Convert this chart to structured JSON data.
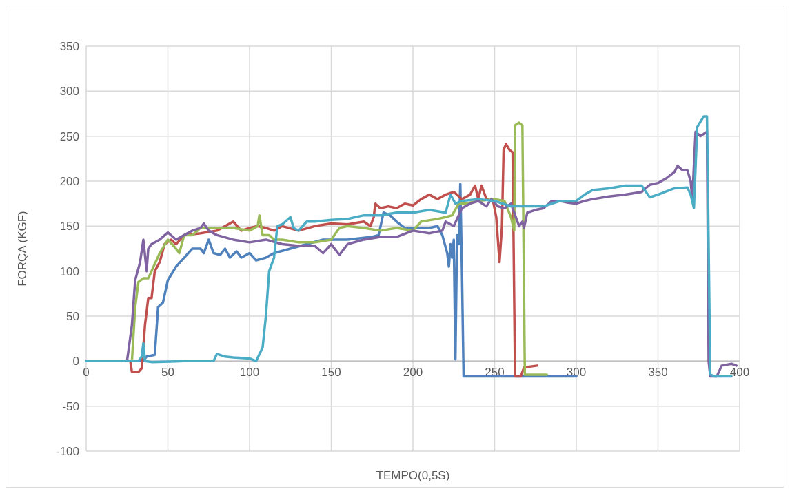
{
  "chart_data": {
    "type": "line",
    "xlabel": "TEMPO(0,5S)",
    "ylabel": "FORÇA (KGF)",
    "xlim": [
      0,
      400
    ],
    "ylim": [
      -100,
      350
    ],
    "xticks": [
      0,
      50,
      100,
      150,
      200,
      250,
      300,
      350,
      400
    ],
    "yticks": [
      -100,
      -50,
      0,
      50,
      100,
      150,
      200,
      250,
      300,
      350
    ],
    "grid": true,
    "marker": "none",
    "line_style": "solid",
    "series": [
      {
        "color": "#4f81bd",
        "x": [
          0,
          35,
          37,
          42,
          44,
          47,
          50,
          55,
          60,
          65,
          70,
          72,
          75,
          78,
          82,
          85,
          88,
          92,
          95,
          100,
          104,
          110,
          115,
          125,
          135,
          145,
          160,
          170,
          175,
          179,
          182,
          186,
          190,
          195,
          200,
          210,
          215,
          218,
          221,
          222,
          223,
          224,
          225,
          226,
          227,
          228,
          229,
          230,
          231,
          300
        ],
        "values": [
          0,
          0,
          5,
          7,
          60,
          65,
          90,
          105,
          115,
          125,
          125,
          120,
          135,
          120,
          118,
          125,
          115,
          122,
          115,
          120,
          112,
          115,
          120,
          125,
          130,
          135,
          135,
          137,
          138,
          140,
          165,
          162,
          155,
          148,
          148,
          148,
          150,
          140,
          120,
          105,
          130,
          115,
          135,
          2,
          140,
          130,
          197,
          100,
          -17,
          -17
        ]
      },
      {
        "color": "#c0504d",
        "x": [
          0,
          27,
          28,
          32,
          34,
          36,
          38,
          40,
          42,
          45,
          48,
          52,
          55,
          60,
          70,
          80,
          90,
          95,
          100,
          105,
          110,
          115,
          120,
          130,
          140,
          150,
          160,
          170,
          174,
          176,
          177,
          180,
          185,
          190,
          195,
          200,
          205,
          210,
          215,
          220,
          225,
          230,
          235,
          238,
          240,
          242,
          245,
          249,
          251,
          253,
          254.5,
          255.5,
          257,
          259,
          261,
          262.5,
          266,
          268,
          276
        ],
        "values": [
          0,
          0,
          -12,
          -12,
          -8,
          40,
          70,
          70,
          100,
          110,
          130,
          135,
          130,
          140,
          142,
          145,
          155,
          145,
          148,
          150,
          148,
          145,
          150,
          145,
          150,
          153,
          152,
          155,
          150,
          160,
          175,
          170,
          172,
          170,
          175,
          173,
          180,
          185,
          180,
          185,
          188,
          180,
          185,
          195,
          180,
          195,
          180,
          178,
          160,
          110,
          150,
          235,
          241,
          235,
          232,
          -17,
          -17,
          -7,
          -5
        ]
      },
      {
        "color": "#9bbb59",
        "x": [
          0,
          28,
          30,
          32,
          35,
          38,
          40,
          45,
          50,
          55,
          57,
          60,
          65,
          70,
          80,
          90,
          100,
          105,
          106,
          108,
          112,
          115,
          120,
          130,
          140,
          150,
          155,
          160,
          170,
          180,
          190,
          200,
          205,
          215,
          220,
          224,
          228,
          232,
          240,
          250,
          256,
          260,
          262,
          262.5,
          265,
          267,
          268.5,
          282
        ],
        "values": [
          0,
          0,
          60,
          88,
          92,
          92,
          100,
          120,
          135,
          125,
          120,
          140,
          140,
          148,
          148,
          148,
          145,
          150,
          162,
          140,
          140,
          135,
          135,
          132,
          132,
          135,
          148,
          150,
          148,
          145,
          148,
          145,
          155,
          158,
          160,
          162,
          175,
          175,
          178,
          180,
          178,
          160,
          145,
          262,
          265,
          262,
          -15,
          -15
        ]
      },
      {
        "color": "#8064a2",
        "x": [
          0,
          25,
          28,
          30,
          33,
          35,
          37,
          38,
          40,
          45,
          50,
          55,
          60,
          65,
          70,
          72,
          75,
          80,
          90,
          100,
          110,
          120,
          130,
          140,
          145,
          150,
          155,
          160,
          170,
          180,
          190,
          200,
          210,
          218,
          220,
          225,
          230,
          235,
          240,
          245,
          248,
          252,
          256,
          260,
          262,
          265,
          267,
          268,
          270,
          275,
          280,
          285,
          290,
          295,
          300,
          305,
          310,
          320,
          330,
          340,
          345,
          350,
          355,
          360,
          362,
          365,
          368,
          370,
          371,
          373,
          376,
          380,
          381,
          382,
          386,
          389,
          395,
          398
        ],
        "values": [
          0,
          0,
          40,
          90,
          110,
          135,
          100,
          125,
          130,
          135,
          143,
          135,
          140,
          145,
          148,
          153,
          145,
          140,
          135,
          132,
          135,
          130,
          128,
          128,
          120,
          130,
          118,
          130,
          135,
          138,
          138,
          145,
          142,
          145,
          155,
          150,
          170,
          175,
          178,
          172,
          180,
          172,
          170,
          175,
          165,
          150,
          155,
          148,
          165,
          168,
          170,
          178,
          178,
          176,
          175,
          178,
          180,
          183,
          185,
          188,
          196,
          198,
          203,
          210,
          217,
          212,
          212,
          200,
          180,
          255,
          250,
          255,
          0,
          -17,
          -17,
          -5,
          -3,
          -5
        ]
      },
      {
        "color": "#4bacc6",
        "x": [
          0,
          32,
          34,
          35,
          36,
          40,
          60,
          78,
          80,
          85,
          90,
          100,
          104,
          108,
          110,
          112,
          115,
          117,
          120,
          125,
          127,
          130,
          135,
          140,
          150,
          160,
          170,
          180,
          190,
          200,
          210,
          220,
          223,
          226,
          230,
          240,
          250,
          260,
          270,
          280,
          290,
          300,
          305,
          310,
          320,
          330,
          340,
          345,
          350,
          360,
          368,
          370,
          372,
          374,
          378,
          380,
          382,
          385,
          395
        ],
        "values": [
          0,
          0,
          5,
          20,
          0,
          -1,
          0,
          0,
          8,
          5,
          4,
          3,
          0,
          15,
          50,
          100,
          115,
          150,
          152,
          160,
          148,
          145,
          155,
          155,
          157,
          158,
          162,
          162,
          165,
          165,
          168,
          165,
          185,
          175,
          178,
          180,
          178,
          172,
          172,
          172,
          178,
          178,
          185,
          190,
          192,
          195,
          195,
          182,
          185,
          192,
          193,
          185,
          170,
          260,
          272,
          272,
          -15,
          -17,
          -17
        ]
      }
    ]
  }
}
